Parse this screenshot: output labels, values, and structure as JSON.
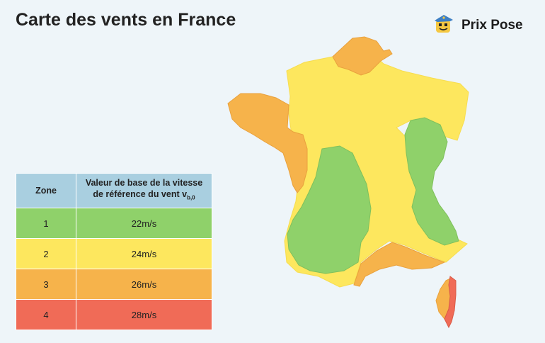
{
  "title": "Carte des vents en France",
  "brand": {
    "name": "Prix Pose",
    "logo_icon": "mascot-icon"
  },
  "table": {
    "header_zone": "Zone",
    "header_value_line1": "Valeur de base de la vitesse",
    "header_value_line2": "de référence du vent v",
    "header_value_sub": "b,0",
    "rows": [
      {
        "zone": "1",
        "value": "22m/s",
        "color": "#8fd16a"
      },
      {
        "zone": "2",
        "value": "24m/s",
        "color": "#fde75e"
      },
      {
        "zone": "3",
        "value": "26m/s",
        "color": "#f6b34b"
      },
      {
        "zone": "4",
        "value": "28m/s",
        "color": "#f06b57"
      }
    ]
  },
  "colors": {
    "zone1": "#8fd16a",
    "zone2": "#fde75e",
    "zone3": "#f6b34b",
    "zone4": "#f06b57",
    "background": "#eef5f9",
    "header": "#a9cfe0"
  }
}
